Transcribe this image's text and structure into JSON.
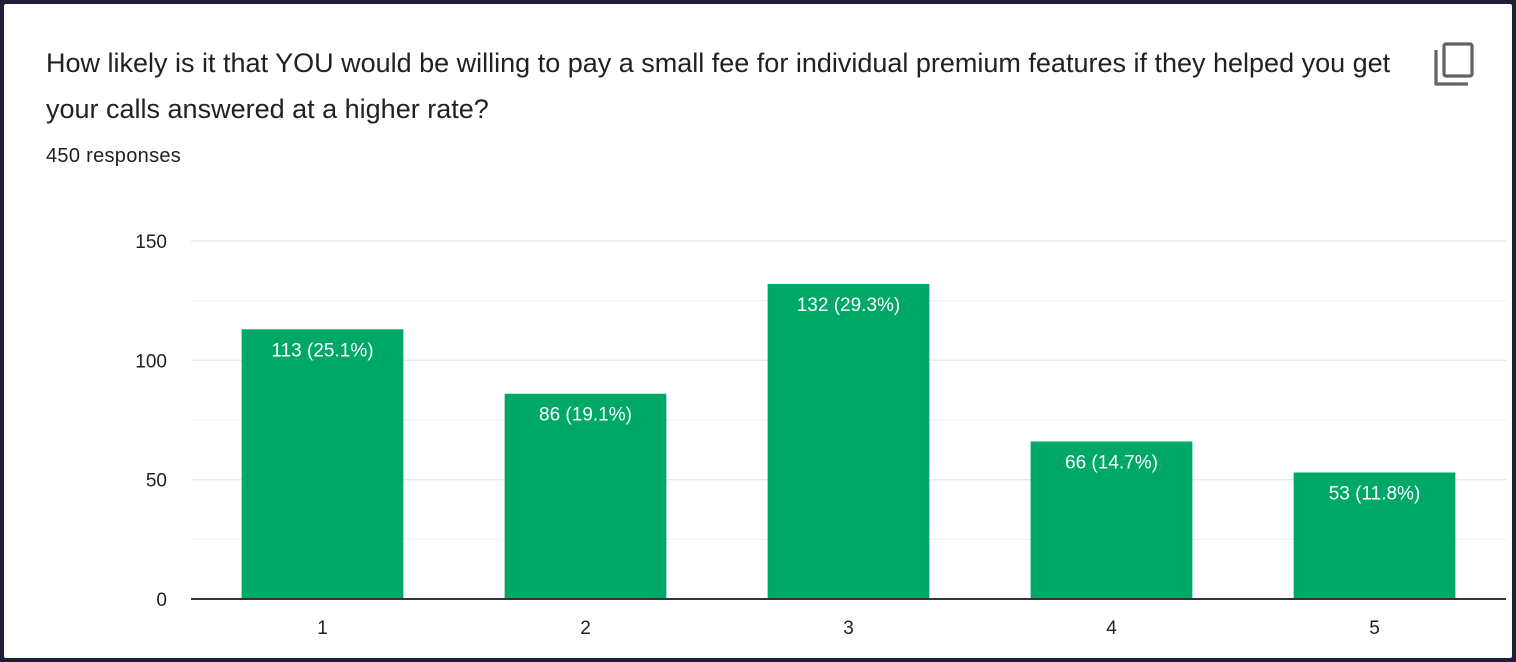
{
  "question": "How likely is it that YOU would be willing to pay a small fee for individual premium features if they helped you get your calls answered at a higher rate?",
  "responses_label": "450 responses",
  "copy_icon": "copy-icon",
  "colors": {
    "bar": "#00a868",
    "grid": "#e6e6e6",
    "axis": "#333333"
  },
  "chart_data": {
    "type": "bar",
    "title": "How likely is it that YOU would be willing to pay a small fee for individual premium features if they helped you get your calls answered at a higher rate?",
    "categories": [
      "1",
      "2",
      "3",
      "4",
      "5"
    ],
    "values": [
      113,
      86,
      132,
      66,
      53
    ],
    "data_labels": [
      "113 (25.1%)",
      "86 (19.1%)",
      "132 (29.3%)",
      "66 (14.7%)",
      "53 (11.8%)"
    ],
    "yticks": [
      0,
      50,
      100,
      150
    ],
    "minor_gridlines": [
      25,
      75,
      125
    ],
    "ylim": [
      0,
      150
    ],
    "xlabel": "",
    "ylabel": ""
  }
}
